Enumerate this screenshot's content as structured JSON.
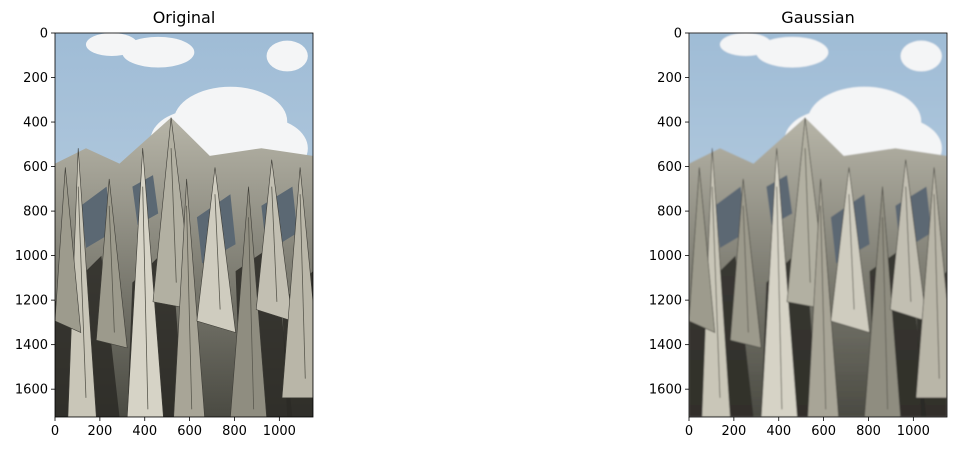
{
  "chart_data": [
    {
      "type": "image",
      "title": "Original",
      "xlim": [
        0,
        1150
      ],
      "ylim": [
        1725,
        0
      ],
      "xticks": [
        0,
        200,
        400,
        600,
        800,
        1000
      ],
      "yticks": [
        0,
        200,
        400,
        600,
        800,
        1000,
        1200,
        1400,
        1600
      ],
      "image_content": "photo-of-angular-building-facade",
      "colors": {
        "sky": "#a9c3d9",
        "cloud": "#f4f5f6",
        "concrete": "#8a8a7c",
        "shadow": "#2b2a26"
      }
    },
    {
      "type": "image",
      "title": "Gaussian",
      "xlim": [
        0,
        1150
      ],
      "ylim": [
        1725,
        0
      ],
      "xticks": [
        0,
        200,
        400,
        600,
        800,
        1000
      ],
      "yticks": [
        0,
        200,
        400,
        600,
        800,
        1000,
        1200,
        1400,
        1600
      ],
      "image_content": "gaussian-blurred-photo-of-angular-building-facade",
      "colors": {
        "sky": "#a9c3d9",
        "cloud": "#f4f5f6",
        "concrete": "#8a8a7c",
        "shadow": "#2b2a26"
      }
    }
  ]
}
